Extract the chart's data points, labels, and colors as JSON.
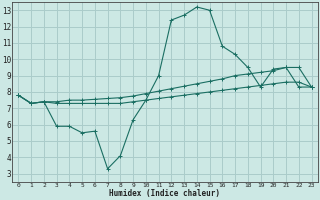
{
  "bg_color": "#cce8e4",
  "grid_color": "#aaccca",
  "line_color": "#1a6e62",
  "xlabel": "Humidex (Indice chaleur)",
  "xlim": [
    -0.5,
    23.5
  ],
  "ylim": [
    2.5,
    13.5
  ],
  "xticks": [
    0,
    1,
    2,
    3,
    4,
    5,
    6,
    7,
    8,
    9,
    10,
    11,
    12,
    13,
    14,
    15,
    16,
    17,
    18,
    19,
    20,
    21,
    22,
    23
  ],
  "yticks": [
    3,
    4,
    5,
    6,
    7,
    8,
    9,
    10,
    11,
    12,
    13
  ],
  "line1_x": [
    0,
    1,
    2,
    3,
    4,
    5,
    6,
    7,
    8,
    9,
    10,
    11,
    12,
    13,
    14,
    15,
    16,
    17,
    18,
    19,
    20,
    21,
    22,
    23
  ],
  "line1_y": [
    7.8,
    7.3,
    7.4,
    5.9,
    5.9,
    5.5,
    5.6,
    3.3,
    4.1,
    6.3,
    7.5,
    9.0,
    12.4,
    12.7,
    13.2,
    13.0,
    10.8,
    10.3,
    9.5,
    8.3,
    9.4,
    9.5,
    8.3,
    8.3
  ],
  "line2_x": [
    0,
    1,
    2,
    3,
    4,
    5,
    6,
    7,
    8,
    9,
    10,
    11,
    12,
    13,
    14,
    15,
    16,
    17,
    18,
    19,
    20,
    21,
    22,
    23
  ],
  "line2_y": [
    7.8,
    7.3,
    7.4,
    7.4,
    7.5,
    7.5,
    7.55,
    7.6,
    7.65,
    7.75,
    7.9,
    8.05,
    8.2,
    8.35,
    8.5,
    8.65,
    8.8,
    9.0,
    9.1,
    9.2,
    9.3,
    9.5,
    9.5,
    8.3
  ],
  "line3_x": [
    0,
    1,
    2,
    3,
    4,
    5,
    6,
    7,
    8,
    9,
    10,
    11,
    12,
    13,
    14,
    15,
    16,
    17,
    18,
    19,
    20,
    21,
    22,
    23
  ],
  "line3_y": [
    7.8,
    7.3,
    7.4,
    7.3,
    7.3,
    7.3,
    7.3,
    7.3,
    7.3,
    7.4,
    7.5,
    7.6,
    7.7,
    7.8,
    7.9,
    8.0,
    8.1,
    8.2,
    8.3,
    8.4,
    8.5,
    8.6,
    8.6,
    8.3
  ]
}
